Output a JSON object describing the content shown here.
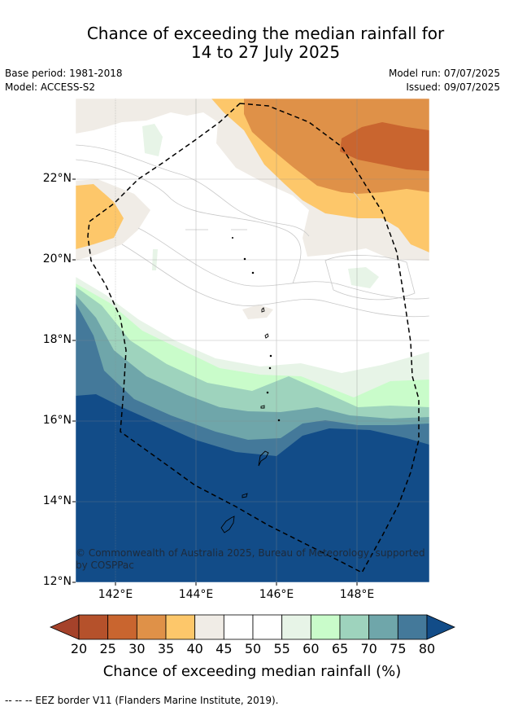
{
  "title": {
    "line1": "Chance of exceeding the median rainfall for",
    "line2": "14 to 27 July 2025"
  },
  "meta": {
    "base_period": "Base period: 1981-2018",
    "model": "Model: ACCESS-S2",
    "model_run": "Model run: 07/07/2025",
    "issued": "Issued: 09/07/2025"
  },
  "map": {
    "lat_labels": [
      "22°N",
      "20°N",
      "18°N",
      "16°N",
      "14°N",
      "12°N"
    ],
    "lon_labels": [
      "142°E",
      "144°E",
      "146°E",
      "148°E"
    ],
    "copyright_line1": "© Commonwealth of Australia 2025, Bureau of Meteorology, supported",
    "copyright_line2": "by COSPPac"
  },
  "colorbar": {
    "labels": [
      "20",
      "25",
      "30",
      "35",
      "40",
      "45",
      "50",
      "55",
      "60",
      "65",
      "70",
      "75",
      "80"
    ],
    "colors": [
      "#a5422a",
      "#b5512b",
      "#c9652f",
      "#df9148",
      "#fdc76a",
      "#f0ece6",
      "#ffffff",
      "#ffffff",
      "#e7f4e7",
      "#c9fcca",
      "#9ed3bd",
      "#6fa6aa",
      "#44799a",
      "#124c88"
    ],
    "title": "Chance of exceeding median rainfall (%)"
  },
  "footer": {
    "legend_text": "--  --  -- EEZ border V11 (Flanders Marine Institute, 2019)."
  }
}
